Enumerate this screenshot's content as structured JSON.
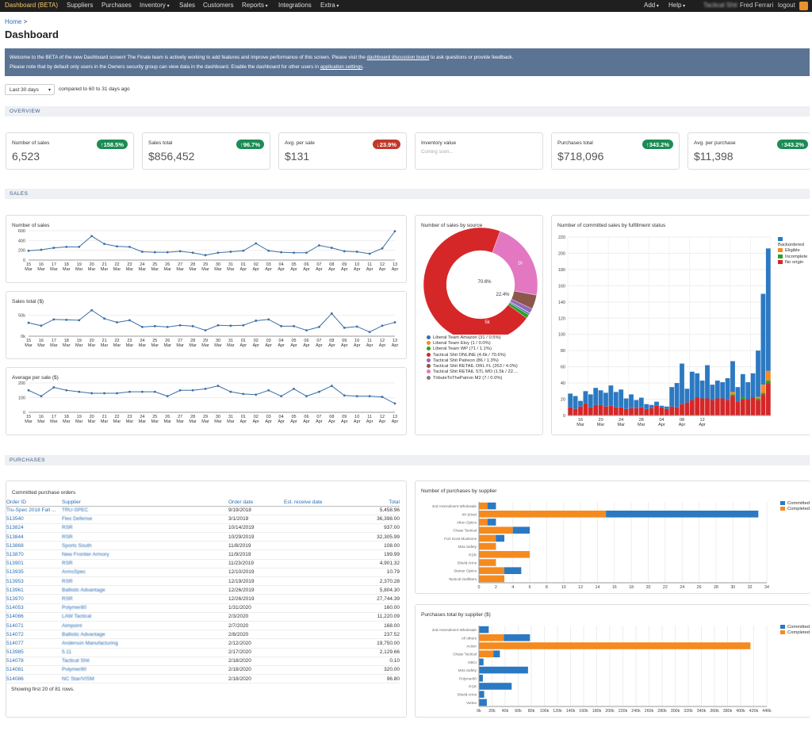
{
  "nav": {
    "items": [
      "Dashboard (BETA)",
      "Suppliers",
      "Purchases",
      "Inventory",
      "Sales",
      "Customers",
      "Reports",
      "Integrations",
      "Extra"
    ],
    "dropdown_flags": [
      false,
      false,
      false,
      true,
      false,
      false,
      true,
      false,
      true
    ],
    "add": "Add",
    "help": "Help",
    "account": "Tactical Shit",
    "user": "Fred Ferrari",
    "logout": "logout"
  },
  "breadcrumb": {
    "home": "Home",
    "sep": ">"
  },
  "page_title": "Dashboard",
  "banner": {
    "line1_a": "Welcome to the BETA of the new Dashboard screen!     The Finale team is actively working to add features and improve performance of this screen.     Please visit the ",
    "line1_link": "dashboard discussion board",
    "line1_b": " to ask questions or provide feedback.",
    "line2_a": "Please note that by default only users in the Owners security group can view data in the dashboard. Enable the dashboard for other users in ",
    "line2_link": "application settings",
    "line2_b": "."
  },
  "filter": {
    "range": "Last 30 days",
    "compare": "compared to 60 to 31 days ago"
  },
  "sections": {
    "overview": "OVERVIEW",
    "sales": "SALES",
    "purchases": "PURCHASES"
  },
  "metrics": [
    {
      "label": "Number of sales",
      "value": "6,523",
      "badge": "↑158.5%",
      "trend": "up"
    },
    {
      "label": "Sales total",
      "value": "$856,452",
      "badge": "↑96.7%",
      "trend": "up"
    },
    {
      "label": "Avg. per sale",
      "value": "$131",
      "badge": "↓23.9%",
      "trend": "down"
    },
    {
      "label": "Inventory value",
      "value": "",
      "sub": "Coming soon...",
      "badge": "",
      "trend": ""
    },
    {
      "label": "Purchases total",
      "value": "$718,096",
      "badge": "↑343.2%",
      "trend": "up"
    },
    {
      "label": "Avg. per purchase",
      "value": "$11,398",
      "badge": "↑343.2%",
      "trend": "up"
    }
  ],
  "colors": {
    "line": "#3b6fa6",
    "blue": "#2b79c2",
    "orange": "#f58a1f",
    "green": "#2ca02c",
    "red": "#d62728",
    "up": "#1c8c55",
    "down": "#c0392b"
  },
  "chart_data": [
    {
      "type": "line",
      "title": "Number of sales",
      "x": [
        "15 Mar",
        "16 Mar",
        "17 Mar",
        "18 Mar",
        "19 Mar",
        "20 Mar",
        "21 Mar",
        "22 Mar",
        "23 Mar",
        "24 Mar",
        "25 Mar",
        "26 Mar",
        "27 Mar",
        "28 Mar",
        "29 Mar",
        "30 Mar",
        "31 Mar",
        "01 Apr",
        "02 Apr",
        "03 Apr",
        "04 Apr",
        "05 Apr",
        "06 Apr",
        "07 Apr",
        "08 Apr",
        "09 Apr",
        "10 Apr",
        "11 Apr",
        "12 Apr",
        "13 Apr"
      ],
      "ticks": [
        "15",
        "16",
        "17",
        "18",
        "19",
        "20",
        "21",
        "22",
        "23",
        "24",
        "25",
        "26",
        "27",
        "28",
        "29",
        "30",
        "31",
        "01",
        "02",
        "03",
        "04",
        "05",
        "06",
        "07",
        "08",
        "09",
        "10",
        "11",
        "12",
        "13"
      ],
      "tick_months": [
        "Mar",
        "Mar",
        "Mar",
        "Mar",
        "Mar",
        "Mar",
        "Mar",
        "Mar",
        "Mar",
        "Mar",
        "Mar",
        "Mar",
        "Mar",
        "Mar",
        "Mar",
        "Mar",
        "Mar",
        "Apr",
        "Apr",
        "Apr",
        "Apr",
        "Apr",
        "Apr",
        "Apr",
        "Apr",
        "Apr",
        "Apr",
        "Apr",
        "Apr",
        "Apr"
      ],
      "values": [
        190,
        210,
        250,
        270,
        270,
        490,
        330,
        280,
        270,
        170,
        160,
        160,
        180,
        150,
        100,
        150,
        170,
        190,
        340,
        190,
        160,
        150,
        150,
        300,
        250,
        180,
        170,
        130,
        240,
        590
      ],
      "ylim": [
        0,
        600
      ],
      "yticks": [
        0,
        200,
        400,
        600
      ],
      "ytick_labels": [
        "0",
        "200",
        "400",
        "600"
      ]
    },
    {
      "type": "line",
      "title": "Sales total ($)",
      "x": [
        "15 Mar",
        "16 Mar",
        "17 Mar",
        "18 Mar",
        "19 Mar",
        "20 Mar",
        "21 Mar",
        "22 Mar",
        "23 Mar",
        "24 Mar",
        "25 Mar",
        "26 Mar",
        "27 Mar",
        "28 Mar",
        "29 Mar",
        "30 Mar",
        "31 Mar",
        "01 Apr",
        "02 Apr",
        "03 Apr",
        "04 Apr",
        "05 Apr",
        "06 Apr",
        "07 Apr",
        "08 Apr",
        "09 Apr",
        "10 Apr",
        "11 Apr",
        "12 Apr",
        "13 Apr"
      ],
      "ticks": [
        "15",
        "16",
        "17",
        "18",
        "19",
        "20",
        "21",
        "22",
        "23",
        "24",
        "25",
        "26",
        "27",
        "28",
        "29",
        "30",
        "31",
        "01",
        "02",
        "03",
        "04",
        "05",
        "06",
        "07",
        "08",
        "09",
        "10",
        "11",
        "12",
        "13"
      ],
      "tick_months": [
        "Mar",
        "Mar",
        "Mar",
        "Mar",
        "Mar",
        "Mar",
        "Mar",
        "Mar",
        "Mar",
        "Mar",
        "Mar",
        "Mar",
        "Mar",
        "Mar",
        "Mar",
        "Mar",
        "Mar",
        "Apr",
        "Apr",
        "Apr",
        "Apr",
        "Apr",
        "Apr",
        "Apr",
        "Apr",
        "Apr",
        "Apr",
        "Apr",
        "Apr",
        "Apr"
      ],
      "values": [
        32000,
        25000,
        40000,
        39000,
        38000,
        62000,
        42000,
        33000,
        38000,
        22000,
        24000,
        22000,
        26000,
        24000,
        14000,
        26000,
        25000,
        26000,
        37000,
        40000,
        24000,
        24000,
        14000,
        22000,
        54000,
        20000,
        23000,
        10000,
        25000,
        33000
      ],
      "ylim": [
        0,
        70000
      ],
      "yticks": [
        0,
        50000
      ],
      "ytick_labels": [
        "0k",
        "50k"
      ]
    },
    {
      "type": "line",
      "title": "Average per sale ($)",
      "x": [
        "15 Mar",
        "16 Mar",
        "17 Mar",
        "18 Mar",
        "19 Mar",
        "20 Mar",
        "21 Mar",
        "22 Mar",
        "23 Mar",
        "24 Mar",
        "25 Mar",
        "26 Mar",
        "27 Mar",
        "28 Mar",
        "29 Mar",
        "30 Mar",
        "31 Mar",
        "01 Apr",
        "02 Apr",
        "03 Apr",
        "04 Apr",
        "05 Apr",
        "06 Apr",
        "07 Apr",
        "08 Apr",
        "09 Apr",
        "10 Apr",
        "11 Apr",
        "12 Apr",
        "13 Apr"
      ],
      "ticks": [
        "15",
        "16",
        "17",
        "18",
        "19",
        "20",
        "21",
        "22",
        "23",
        "24",
        "25",
        "26",
        "27",
        "28",
        "29",
        "30",
        "31",
        "01",
        "02",
        "03",
        "04",
        "05",
        "06",
        "07",
        "08",
        "09",
        "10",
        "11",
        "12",
        "13"
      ],
      "tick_months": [
        "Mar",
        "Mar",
        "Mar",
        "Mar",
        "Mar",
        "Mar",
        "Mar",
        "Mar",
        "Mar",
        "Mar",
        "Mar",
        "Mar",
        "Mar",
        "Mar",
        "Mar",
        "Mar",
        "Mar",
        "Apr",
        "Apr",
        "Apr",
        "Apr",
        "Apr",
        "Apr",
        "Apr",
        "Apr",
        "Apr",
        "Apr",
        "Apr",
        "Apr",
        "Apr"
      ],
      "values": [
        150,
        110,
        170,
        150,
        140,
        130,
        130,
        130,
        140,
        140,
        140,
        110,
        150,
        150,
        160,
        180,
        140,
        125,
        120,
        150,
        110,
        160,
        110,
        140,
        180,
        115,
        110,
        110,
        105,
        60
      ],
      "ylim": [
        0,
        200
      ],
      "yticks": [
        0,
        100,
        200
      ],
      "ytick_labels": [
        "0",
        "100",
        "200"
      ]
    },
    {
      "type": "pie",
      "title": "Number of sales by source",
      "slices": [
        {
          "name": "Liberal Team Amazon (31 / 0.5%)",
          "value": 31,
          "color": "#3b6fa6"
        },
        {
          "name": "Liberal Team Etsy (1 / 0.0%)",
          "value": 1,
          "color": "#f58a1f"
        },
        {
          "name": "Liberal Team WP (71 / 1.1%)",
          "value": 71,
          "color": "#2ca02c"
        },
        {
          "name": "Tactical Shit ONLINE (4.6k / 70.6%)",
          "value": 4600,
          "color": "#d62728"
        },
        {
          "name": "Tactical Shit Patreon (86 / 1.3%)",
          "value": 86,
          "color": "#9467bd"
        },
        {
          "name": "Tactical Shit RETAIL ORL FL (263 / 4.0%)",
          "value": 263,
          "color": "#8c564b"
        },
        {
          "name": "Tactical Shit RETAIL STL MO (1.5k / 22....",
          "value": 1460,
          "color": "#e377c2"
        },
        {
          "name": "TributeToThePatron M2 (7 / 0.0%)",
          "value": 7,
          "color": "#7f7f7f"
        }
      ],
      "labels": {
        "onlineSlice": "5k",
        "onlinePct": "70.6%",
        "stlSlice": "1k",
        "stlPct": "22.4%"
      }
    },
    {
      "type": "bar",
      "title": "Number of committed sales by fulfillment status",
      "stacked": true,
      "x_ticks": [
        "16 Mar",
        "20 Mar",
        "24 Mar",
        "28 Mar",
        "04 Apr",
        "08 Apr",
        "12 Apr"
      ],
      "tick_days": [
        "16",
        "20",
        "24",
        "28",
        "04",
        "08",
        "12"
      ],
      "tick_months": [
        "Mar",
        "Mar",
        "Mar",
        "Mar",
        "Apr",
        "Apr",
        "Apr"
      ],
      "tick_positions": [
        2,
        6,
        10,
        14,
        18,
        22,
        26
      ],
      "series": [
        {
          "name": "Backordered",
          "color": "#2b79c2",
          "values": [
            17,
            16,
            7,
            15,
            16,
            21,
            18,
            17,
            25,
            19,
            22,
            13,
            17,
            10,
            12,
            6,
            4,
            5,
            2,
            3,
            24,
            30,
            50,
            17,
            35,
            30,
            22,
            41,
            19,
            22,
            20,
            27,
            38,
            18,
            28,
            21,
            30,
            57,
            112,
            151
          ]
        },
        {
          "name": "Eligible",
          "color": "#f58a1f",
          "values": [
            0,
            0,
            0,
            0,
            0,
            0,
            0,
            0,
            0,
            0,
            0,
            0,
            0,
            0,
            0,
            0,
            0,
            0,
            0,
            0,
            0,
            0,
            0,
            0,
            0,
            0,
            0,
            0,
            0,
            0,
            0,
            0,
            3,
            0,
            0,
            0,
            0,
            2,
            10,
            12
          ]
        },
        {
          "name": "Incomplete",
          "color": "#2ca02c",
          "values": [
            0,
            0,
            0,
            0,
            0,
            0,
            0,
            0,
            0,
            0,
            0,
            0,
            0,
            0,
            0,
            0,
            0,
            0,
            0,
            0,
            0,
            0,
            0,
            0,
            0,
            0,
            0,
            0,
            0,
            0,
            0,
            0,
            2,
            0,
            3,
            0,
            0,
            2,
            2,
            3
          ]
        },
        {
          "name": "No origin",
          "color": "#d62728",
          "values": [
            10,
            8,
            11,
            15,
            10,
            13,
            13,
            11,
            12,
            10,
            10,
            8,
            9,
            9,
            10,
            8,
            9,
            12,
            10,
            8,
            11,
            10,
            14,
            16,
            19,
            22,
            21,
            21,
            19,
            21,
            21,
            19,
            24,
            17,
            20,
            20,
            22,
            19,
            26,
            40
          ]
        }
      ],
      "ylim": [
        0,
        220
      ],
      "yticks": [
        0,
        20,
        40,
        60,
        80,
        100,
        120,
        140,
        160,
        180,
        200,
        220
      ]
    },
    {
      "type": "bar",
      "orientation": "horizontal",
      "stacked": true,
      "title": "Number of purchases by supplier",
      "categories": [
        "2nd Amendment Wholesale",
        "4H (Kiwi)",
        "Afton Optics",
        "Chase Tactical",
        "Fort Scott Munitions",
        "Mira Safety",
        "RSR",
        "Shield Arms",
        "Steiner Optics",
        "Tactical Outfitters"
      ],
      "series": [
        {
          "name": "Committed",
          "color": "#2b79c2",
          "values": [
            1,
            18,
            1,
            2,
            1,
            0,
            0,
            0,
            2,
            0
          ]
        },
        {
          "name": "Completed",
          "color": "#f58a1f",
          "values": [
            1,
            15,
            1,
            4,
            2,
            2,
            6,
            2,
            3,
            3
          ]
        }
      ],
      "xlim": [
        0,
        34
      ],
      "xticks": [
        0,
        2,
        4,
        6,
        8,
        10,
        12,
        14,
        16,
        18,
        20,
        22,
        24,
        26,
        28,
        30,
        32,
        34
      ]
    },
    {
      "type": "bar",
      "orientation": "horizontal",
      "stacked": true,
      "title": "Purchases total by supplier ($)",
      "categories": [
        "2nd Amendment Wholesale",
        "All others",
        "Action",
        "Chase Tactical",
        "KBCI",
        "Mira Safety",
        "Polymer80",
        "RSR",
        "Shield Arms",
        "Vortex"
      ],
      "series": [
        {
          "name": "Committed",
          "color": "#2b79c2",
          "values": [
            15000,
            40000,
            0,
            10000,
            7000,
            75000,
            6000,
            50000,
            8000,
            12000
          ]
        },
        {
          "name": "Completed",
          "color": "#f58a1f",
          "values": [
            0,
            38000,
            415000,
            22000,
            0,
            0,
            0,
            0,
            0,
            0
          ]
        }
      ],
      "xlim": [
        0,
        440000
      ],
      "xticks": [
        0,
        20000,
        40000,
        60000,
        80000,
        100000,
        120000,
        140000,
        160000,
        180000,
        200000,
        220000,
        240000,
        260000,
        280000,
        300000,
        320000,
        340000,
        360000,
        380000,
        400000,
        420000,
        440000
      ],
      "xtick_labels": [
        "0k",
        "20k",
        "40k",
        "60k",
        "80k",
        "100k",
        "120k",
        "140k",
        "160k",
        "180k",
        "200k",
        "220k",
        "240k",
        "260k",
        "280k",
        "300k",
        "320k",
        "340k",
        "360k",
        "380k",
        "400k",
        "420k",
        "440k"
      ]
    }
  ],
  "po": {
    "title": "Committed purchase orders",
    "headers": [
      "Order ID",
      "Supplier",
      "Order date",
      "Est. receive date",
      "Total"
    ],
    "rows": [
      [
        "Tru-Spec 2018 Fall ...",
        "TRU-SPEC",
        "9/19/2018",
        "",
        "5,458.96"
      ],
      [
        "513540",
        "Flex Defense",
        "3/1/2019",
        "",
        "36,398.00"
      ],
      [
        "513824",
        "RSR",
        "10/14/2019",
        "",
        "937.00"
      ],
      [
        "513844",
        "RSR",
        "10/29/2019",
        "",
        "32,305.99"
      ],
      [
        "513868",
        "Sports South",
        "11/8/2019",
        "",
        "108.00"
      ],
      [
        "513870",
        "New Frontier Armory",
        "11/9/2019",
        "",
        "199.99"
      ],
      [
        "513901",
        "RSR",
        "11/23/2019",
        "",
        "4,901.32"
      ],
      [
        "513935",
        "ArmsSpec",
        "12/10/2019",
        "",
        "10.79"
      ],
      [
        "513953",
        "RSR",
        "12/19/2019",
        "",
        "2,370.28"
      ],
      [
        "513961",
        "Ballistic Advantage",
        "12/26/2019",
        "",
        "5,804.30"
      ],
      [
        "513970",
        "RSR",
        "12/26/2019",
        "",
        "27,744.39"
      ],
      [
        "514053",
        "Polymer80",
        "1/31/2020",
        "",
        "160.00"
      ],
      [
        "514066",
        "LAW Tactical",
        "2/3/2020",
        "",
        "11,220.09"
      ],
      [
        "514071",
        "Aimpoint",
        "2/7/2020",
        "",
        "168.00"
      ],
      [
        "514072",
        "Ballistic Advantage",
        "2/8/2020",
        "",
        "237.52"
      ],
      [
        "514077",
        "Anderson Manufacturing",
        "2/12/2020",
        "",
        "19,750.00"
      ],
      [
        "513985",
        "5.11",
        "2/17/2020",
        "",
        "2,129.66"
      ],
      [
        "514078",
        "Tactical Shit",
        "2/18/2020",
        "",
        "0.10"
      ],
      [
        "514081",
        "Polymer80",
        "2/18/2020",
        "",
        "320.00"
      ],
      [
        "514086",
        "NC Star/VISM",
        "2/18/2020",
        "",
        "96.80"
      ]
    ],
    "footer": "Showing first 20 of 81 rows."
  }
}
